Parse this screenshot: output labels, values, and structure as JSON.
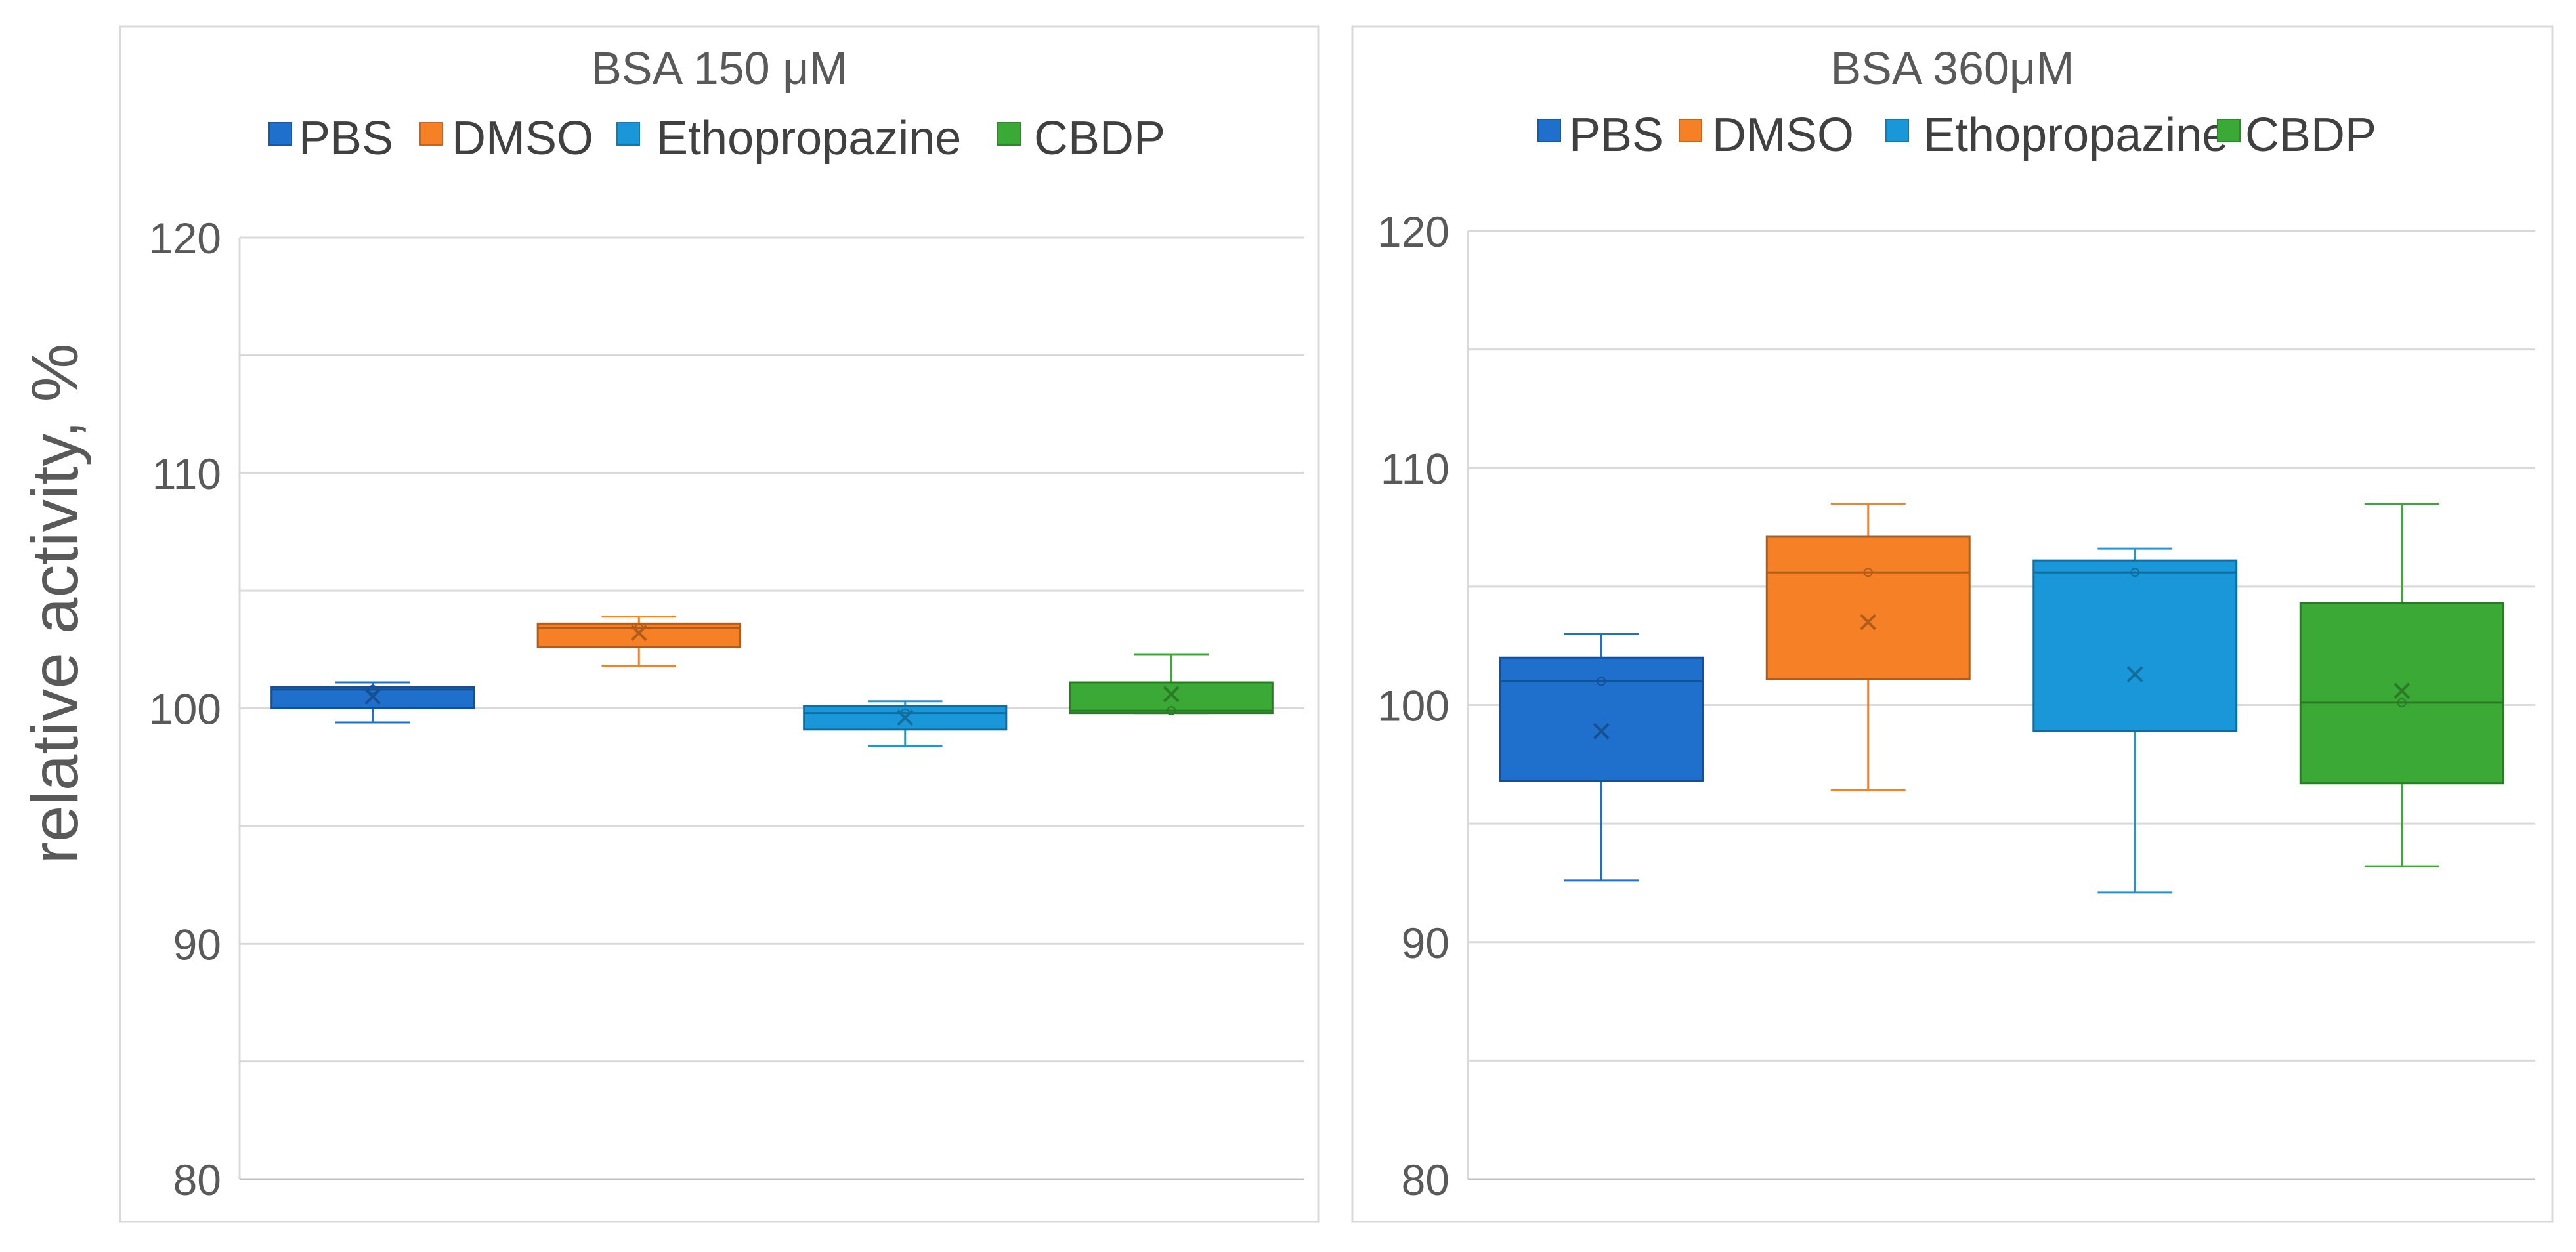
{
  "y_axis_title": "relative activity, %",
  "colors": {
    "PBS": "#1f6fcc",
    "DMSO": "#f58025",
    "Ethopropazine": "#1a97d9",
    "CBDP": "#3aa935"
  },
  "chart_data": [
    {
      "type": "box",
      "title": "BSA 150 μM",
      "ylim": [
        80,
        120
      ],
      "yticks": [
        80,
        90,
        100,
        110,
        120
      ],
      "grid": true,
      "legend_placement": "top",
      "categories": [
        "PBS",
        "DMSO",
        "Ethopropazine",
        "CBDP"
      ],
      "series": [
        {
          "name": "PBS",
          "whisker_low": 99.4,
          "q1": 100.0,
          "median": 100.8,
          "q3": 100.9,
          "whisker_high": 101.1,
          "mean": 100.5
        },
        {
          "name": "DMSO",
          "whisker_low": 101.8,
          "q1": 102.6,
          "median": 103.4,
          "q3": 103.6,
          "whisker_high": 103.9,
          "mean": 103.2
        },
        {
          "name": "Ethopropazine",
          "whisker_low": 98.4,
          "q1": 99.1,
          "median": 99.8,
          "q3": 100.1,
          "whisker_high": 100.3,
          "mean": 99.6
        },
        {
          "name": "CBDP",
          "whisker_low": 99.8,
          "q1": 99.8,
          "median": 99.9,
          "q3": 101.1,
          "whisker_high": 102.3,
          "mean": 100.6
        }
      ]
    },
    {
      "type": "box",
      "title": "BSA 360μM",
      "ylim": [
        80,
        120
      ],
      "yticks": [
        80,
        90,
        100,
        110,
        120
      ],
      "grid": true,
      "legend_placement": "top",
      "categories": [
        "PBS",
        "DMSO",
        "Ethopropazine",
        "CBDP"
      ],
      "series": [
        {
          "name": "PBS",
          "whisker_low": 92.6,
          "q1": 96.8,
          "median": 101.0,
          "q3": 102.0,
          "whisker_high": 103.0,
          "mean": 98.9
        },
        {
          "name": "DMSO",
          "whisker_low": 96.4,
          "q1": 101.1,
          "median": 105.6,
          "q3": 107.1,
          "whisker_high": 108.5,
          "mean": 103.5
        },
        {
          "name": "Ethopropazine",
          "whisker_low": 92.1,
          "q1": 98.9,
          "median": 105.6,
          "q3": 106.1,
          "whisker_high": 106.6,
          "mean": 101.3
        },
        {
          "name": "CBDP",
          "whisker_low": 93.2,
          "q1": 96.7,
          "median": 100.1,
          "q3": 104.3,
          "whisker_high": 108.5,
          "mean": 100.6
        }
      ]
    }
  ]
}
